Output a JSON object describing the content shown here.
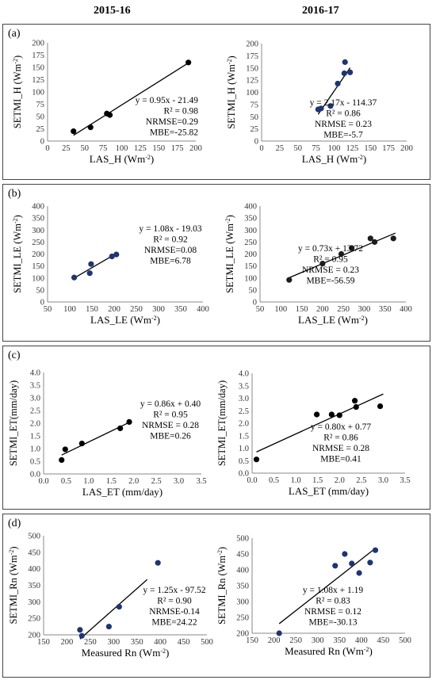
{
  "headers": {
    "left": "2015-16",
    "right": "2016-17"
  },
  "panels": [
    {
      "label": "(a)"
    },
    {
      "label": "(b)"
    },
    {
      "label": "(c)"
    },
    {
      "label": "(d)"
    }
  ],
  "chart_data": [
    {
      "type": "scatter",
      "panel": "(a)",
      "column": "2015-16",
      "xlabel": "LAS_H (Wm⁻²)",
      "ylabel": "SETMI_H (Wm⁻²)",
      "xlim": [
        0,
        200
      ],
      "xticks": [
        0,
        25,
        50,
        75,
        100,
        125,
        150,
        175,
        200
      ],
      "ylim": [
        0,
        200
      ],
      "yticks": [
        0,
        25,
        50,
        75,
        100,
        125,
        150,
        175,
        200
      ],
      "marker_color": "#000000",
      "points": [
        [
          35,
          20
        ],
        [
          58,
          28
        ],
        [
          80,
          56
        ],
        [
          84,
          53
        ],
        [
          190,
          160
        ]
      ],
      "trendline": {
        "slope": 0.95,
        "intercept": -21.49,
        "x_range": [
          35,
          190
        ]
      },
      "annotation": [
        "y = 0.95x - 21.49",
        "R² = 0.98",
        "NRMSE=0.29",
        "MBE=-25.82"
      ]
    },
    {
      "type": "scatter",
      "panel": "(a)",
      "column": "2016-17",
      "xlabel": "LAS_H (Wm⁻²)",
      "ylabel": "SETMI_H (Wm⁻²)",
      "xlim": [
        0,
        200
      ],
      "xticks": [
        0,
        25,
        50,
        75,
        100,
        125,
        150,
        175,
        200
      ],
      "ylim": [
        0,
        200
      ],
      "yticks": [
        0,
        25,
        50,
        75,
        100,
        125,
        150,
        175,
        200
      ],
      "marker_color": "#1f3570",
      "points": [
        [
          78,
          65
        ],
        [
          82,
          67
        ],
        [
          95,
          72
        ],
        [
          105,
          118
        ],
        [
          114,
          139
        ],
        [
          115,
          162
        ],
        [
          122,
          141
        ]
      ],
      "trendline": {
        "slope": 2.17,
        "intercept": -114.37,
        "x_range": [
          78,
          122
        ]
      },
      "annotation": [
        "y = 2.17x - 114.37",
        "R² = 0.86",
        "NRMSE = 0.23",
        "MBE=-5.7"
      ]
    },
    {
      "type": "scatter",
      "panel": "(b)",
      "column": "2015-16",
      "xlabel": "LAS_LE (Wm⁻²)",
      "ylabel": "SETMI_LE (Wm⁻²)",
      "xlim": [
        50,
        400
      ],
      "xticks": [
        50,
        100,
        150,
        200,
        250,
        300,
        350,
        400
      ],
      "ylim": [
        0,
        400
      ],
      "yticks": [
        0,
        50,
        100,
        150,
        200,
        250,
        300,
        350,
        400
      ],
      "marker_color": "#1f3570",
      "points": [
        [
          110,
          102
        ],
        [
          145,
          120
        ],
        [
          148,
          158
        ],
        [
          195,
          190
        ],
        [
          205,
          198
        ]
      ],
      "trendline": {
        "slope": 1.08,
        "intercept": -19.03,
        "x_range": [
          110,
          205
        ]
      },
      "annotation": [
        "y = 1.08x - 19.03",
        "R² = 0.92",
        "NRMSE=0.08",
        "MBE=6.78"
      ]
    },
    {
      "type": "scatter",
      "panel": "(b)",
      "column": "2016-17",
      "xlabel": "LAS_LE (Wm⁻²)",
      "ylabel": "SETMI_LE (Wm⁻²)",
      "xlim": [
        50,
        400
      ],
      "xticks": [
        50,
        100,
        150,
        200,
        250,
        300,
        350,
        400
      ],
      "ylim": [
        0,
        400
      ],
      "yticks": [
        0,
        50,
        100,
        150,
        200,
        250,
        300,
        350,
        400
      ],
      "marker_color": "#1c1c1c",
      "points": [
        [
          120,
          92
        ],
        [
          200,
          160
        ],
        [
          245,
          200
        ],
        [
          270,
          225
        ],
        [
          315,
          265
        ],
        [
          325,
          250
        ],
        [
          370,
          265
        ]
      ],
      "trendline": {
        "slope": 0.73,
        "intercept": 13.72,
        "x_range": [
          120,
          375
        ]
      },
      "annotation": [
        "y = 0.73x + 13.72",
        "R² = 0.95",
        "NRMSE = 0.23",
        "MBE=-56.59"
      ]
    },
    {
      "type": "scatter",
      "panel": "(c)",
      "column": "2015-16",
      "xlabel": "LAS_ET (mm/day)",
      "ylabel": "SETMI_ET(mm/day)",
      "xlim": [
        0,
        3.5
      ],
      "xticks": [
        0.0,
        0.5,
        1.0,
        1.5,
        2.0,
        2.5,
        3.0,
        3.5
      ],
      "ylim": [
        0,
        4
      ],
      "yticks": [
        0.0,
        0.5,
        1.0,
        1.5,
        2.0,
        2.5,
        3.0,
        3.5,
        4.0
      ],
      "marker_color": "#000000",
      "points": [
        [
          0.4,
          0.55
        ],
        [
          0.48,
          0.97
        ],
        [
          0.85,
          1.2
        ],
        [
          1.7,
          1.8
        ],
        [
          1.9,
          2.05
        ]
      ],
      "trendline": {
        "slope": 0.86,
        "intercept": 0.4,
        "x_range": [
          0.4,
          1.9
        ]
      },
      "annotation": [
        "y = 0.86x + 0.40",
        "R² = 0.95",
        "NRMSE = 0.28",
        "MBE=0.26"
      ]
    },
    {
      "type": "scatter",
      "panel": "(c)",
      "column": "2016-17",
      "xlabel": "LAS_ET (mm/day)",
      "ylabel": "SETMI_ET(mm/day)",
      "xlim": [
        0,
        3.5
      ],
      "xticks": [
        0.0,
        0.5,
        1.0,
        1.5,
        2.0,
        2.5,
        3.0,
        3.5
      ],
      "ylim": [
        0,
        4
      ],
      "yticks": [
        0.0,
        0.5,
        1.0,
        1.5,
        2.0,
        2.5,
        3.0,
        3.5,
        4.0
      ],
      "marker_color": "#000000",
      "points": [
        [
          0.1,
          0.55
        ],
        [
          1.48,
          2.35
        ],
        [
          1.82,
          2.35
        ],
        [
          2.0,
          2.32
        ],
        [
          2.35,
          2.9
        ],
        [
          2.38,
          2.65
        ],
        [
          2.93,
          2.68
        ]
      ],
      "trendline": {
        "slope": 0.8,
        "intercept": 0.77,
        "x_range": [
          0.1,
          3.0
        ]
      },
      "annotation": [
        "y = 0.80x + 0.77",
        "R² = 0.86",
        "NRMSE = 0.28",
        "MBE=0.41"
      ]
    },
    {
      "type": "scatter",
      "panel": "(d)",
      "column": "2015-16",
      "xlabel": "Measured Rn (Wm⁻²)",
      "ylabel": "SETMI_Rn (Wm⁻²)",
      "xlim": [
        150,
        500
      ],
      "xticks": [
        150,
        200,
        250,
        300,
        350,
        400,
        450,
        500
      ],
      "ylim": [
        200,
        500
      ],
      "yticks": [
        200,
        250,
        300,
        350,
        400,
        450,
        500
      ],
      "marker_color": "#1f3570",
      "points": [
        [
          228,
          215
        ],
        [
          232,
          197
        ],
        [
          290,
          225
        ],
        [
          312,
          285
        ],
        [
          395,
          418
        ]
      ],
      "trendline": {
        "slope": 1.25,
        "intercept": -97.52,
        "x_range": [
          228,
          372
        ]
      },
      "annotation": [
        "y = 1.25x - 97.52",
        "R² = 0.90",
        "NRMSE-0.14",
        "MBE=24.22"
      ]
    },
    {
      "type": "scatter",
      "panel": "(d)",
      "column": "2016-17",
      "xlabel": "Measured Rn (Wm⁻²)",
      "ylabel": "SETMI_Rn (Wm⁻²)",
      "xlim": [
        150,
        500
      ],
      "xticks": [
        150,
        200,
        250,
        300,
        350,
        400,
        450,
        500
      ],
      "ylim": [
        200,
        500
      ],
      "yticks": [
        200,
        250,
        300,
        350,
        400,
        450,
        500
      ],
      "marker_color": "#1f3570",
      "points": [
        [
          212,
          200
        ],
        [
          340,
          413
        ],
        [
          362,
          450
        ],
        [
          378,
          420
        ],
        [
          395,
          390
        ],
        [
          420,
          423
        ],
        [
          432,
          462
        ]
      ],
      "trendline": {
        "slope": 1.08,
        "intercept": 1.19,
        "x_range": [
          212,
          432
        ]
      },
      "annotation": [
        "y = 1.08x + 1.19",
        "R² = 0.83",
        "NRMSE = 0.12",
        "MBE=-30.13"
      ]
    }
  ]
}
